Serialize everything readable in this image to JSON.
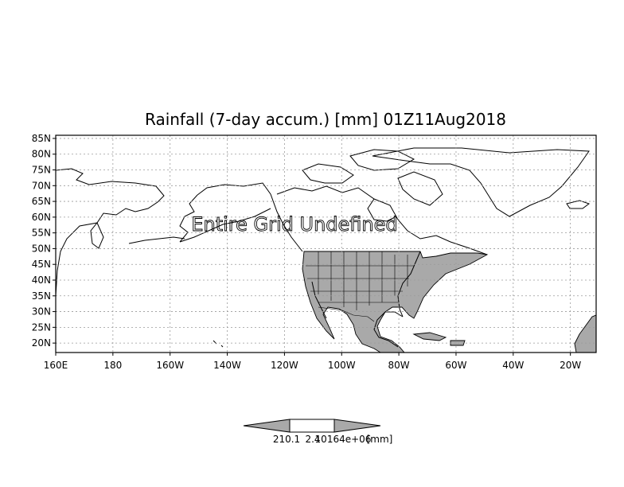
{
  "title": "Rainfall (7-day accum.) [mm] 01Z11Aug2018",
  "overlay_text": "Entire Grid Undefined",
  "map": {
    "lon_range": [
      -200,
      -11
    ],
    "lat_range": [
      17,
      86
    ],
    "lat_labels": [
      {
        "lat": 85,
        "text": "85N"
      },
      {
        "lat": 80,
        "text": "80N"
      },
      {
        "lat": 75,
        "text": "75N"
      },
      {
        "lat": 70,
        "text": "70N"
      },
      {
        "lat": 65,
        "text": "65N"
      },
      {
        "lat": 60,
        "text": "60N"
      },
      {
        "lat": 55,
        "text": "55N"
      },
      {
        "lat": 50,
        "text": "50N"
      },
      {
        "lat": 45,
        "text": "45N"
      },
      {
        "lat": 40,
        "text": "40N"
      },
      {
        "lat": 35,
        "text": "35N"
      },
      {
        "lat": 30,
        "text": "30N"
      },
      {
        "lat": 25,
        "text": "25N"
      },
      {
        "lat": 20,
        "text": "20N"
      }
    ],
    "lon_labels": [
      {
        "lon": -200,
        "text": "160E"
      },
      {
        "lon": -180,
        "text": "180"
      },
      {
        "lon": -160,
        "text": "160W"
      },
      {
        "lon": -140,
        "text": "140W"
      },
      {
        "lon": -120,
        "text": "120W"
      },
      {
        "lon": -100,
        "text": "100W"
      },
      {
        "lon": -80,
        "text": "80W"
      },
      {
        "lon": -60,
        "text": "60W"
      },
      {
        "lon": -40,
        "text": "40W"
      },
      {
        "lon": -20,
        "text": "20W"
      }
    ]
  },
  "colorbar": {
    "labels": [
      "210.1",
      "2.4",
      "10164e+06",
      "[mm]"
    ],
    "fill_color": "#a9a9a9"
  },
  "colors": {
    "land_fill": "#a9a9a9",
    "coastline": "#000000",
    "grid": "#9a9a9a"
  }
}
